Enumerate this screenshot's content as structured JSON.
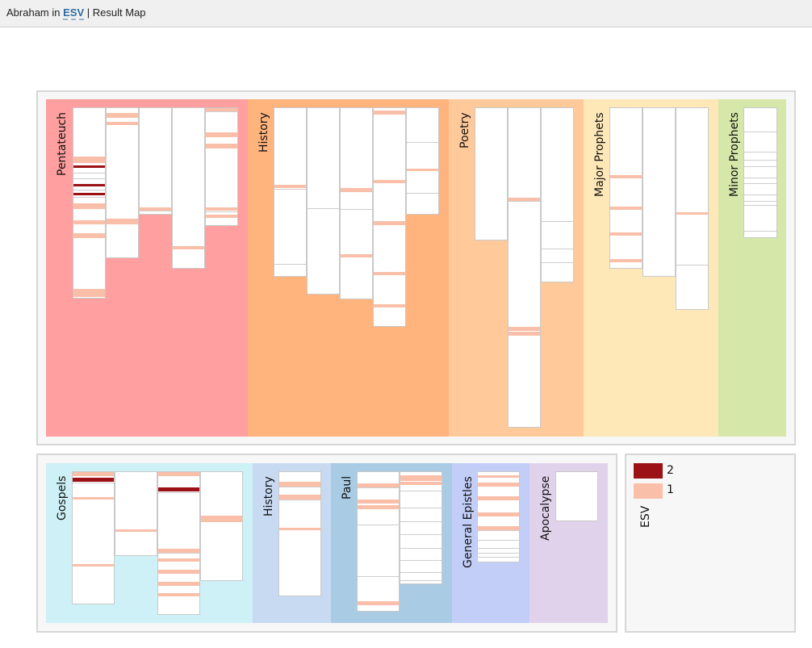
{
  "title": {
    "query": "Abraham",
    "sep1": "in",
    "version": "ESV",
    "sep2": "|",
    "view": "Result Map"
  },
  "colors": {
    "hit2": "#9b1116",
    "hit1": "#f9bfa9",
    "divider": "#cdcdcd"
  },
  "legend": {
    "items": [
      {
        "label": "2",
        "color": "#9b1116"
      },
      {
        "label": "1",
        "color": "#f9bfa9"
      }
    ],
    "version": "ESV"
  },
  "sections": {
    "ot": [
      {
        "id": "pentateuch",
        "label": "Pentateuch",
        "color": "#ff9f9f",
        "books": [
          {
            "h": 237,
            "hits": [
              [
                0.255,
                0.035,
                1
              ],
              [
                0.3,
                0.012,
                2
              ],
              [
                0.4,
                0.012,
                2
              ],
              [
                0.445,
                0.012,
                2
              ],
              [
                0.5,
                0.03,
                1
              ],
              [
                0.59,
                0.02,
                1
              ],
              [
                0.66,
                0.025,
                1
              ],
              [
                0.955,
                0.02,
                1
              ],
              [
                0.975,
                0.02,
                1
              ]
            ],
            "lines": [
              0.34,
              0.37,
              0.43,
              0.47
            ]
          },
          {
            "h": 187,
            "hits": [
              [
                0.03,
                0.03,
                1
              ],
              [
                0.09,
                0.02,
                1
              ],
              [
                0.74,
                0.04,
                1
              ]
            ],
            "lines": [
              0.76
            ]
          },
          {
            "h": 133,
            "hits": [
              [
                0.94,
                0.03,
                1
              ]
            ],
            "lines": [
              0.97
            ]
          },
          {
            "h": 200,
            "hits": [
              [
                0.865,
                0.02,
                1
              ]
            ],
            "lines": [
              0.87
            ]
          },
          {
            "h": 147,
            "hits": [
              [
                0.0,
                0.03,
                1
              ],
              [
                0.21,
                0.04,
                1
              ],
              [
                0.3,
                0.04,
                1
              ],
              [
                0.85,
                0.03,
                1
              ],
              [
                0.91,
                0.03,
                1
              ]
            ],
            "lines": [
              0.03,
              0.88
            ]
          }
        ]
      },
      {
        "id": "history-ot",
        "label": "History",
        "color": "#ffb37d",
        "books": [
          {
            "h": 210,
            "hits": [
              [
                0.455,
                0.02,
                1
              ]
            ],
            "lines": [
              0.48,
              0.93
            ]
          },
          {
            "h": 232,
            "hits": [],
            "lines": [
              0.54
            ]
          },
          {
            "h": 238,
            "hits": [
              [
                0.42,
                0.02,
                1
              ],
              [
                0.765,
                0.015,
                1
              ]
            ],
            "lines": [
              0.53
            ]
          },
          {
            "h": 272,
            "hits": [
              [
                0.01,
                0.02,
                1
              ],
              [
                0.33,
                0.015,
                1
              ],
              [
                0.52,
                0.02,
                1
              ],
              [
                0.75,
                0.015,
                1
              ],
              [
                0.9,
                0.015,
                1
              ]
            ],
            "lines": [
              0.34,
              0.53,
              0.76,
              0.91
            ]
          },
          {
            "h": 133,
            "hits": [
              [
                0.575,
                0.02,
                1
              ]
            ],
            "lines": [
              0.32,
              0.59,
              0.8
            ]
          }
        ]
      },
      {
        "id": "poetry",
        "label": "Poetry",
        "color": "#ffc99a",
        "books": [
          {
            "h": 165,
            "hits": [],
            "lines": []
          },
          {
            "h": 397,
            "hits": [
              [
                0.28,
                0.01,
                1
              ],
              [
                0.685,
                0.012,
                1
              ],
              [
                0.7,
                0.012,
                1
              ]
            ],
            "lines": [
              0.29,
              0.7
            ]
          },
          {
            "h": 217,
            "hits": [],
            "lines": [
              0.65,
              0.81,
              0.89
            ]
          }
        ]
      },
      {
        "id": "major-prophets",
        "label": "Major Prophets",
        "color": "#ffe8b7",
        "books": [
          {
            "h": 200,
            "hits": [
              [
                0.42,
                0.02,
                1
              ],
              [
                0.615,
                0.02,
                1
              ],
              [
                0.78,
                0.02,
                1
              ],
              [
                0.945,
                0.02,
                1
              ]
            ],
            "lines": [
              0.63,
              0.79,
              0.96
            ]
          },
          {
            "h": 210,
            "hits": [],
            "lines": []
          },
          {
            "h": 251,
            "hits": [
              [
                0.52,
                0.008,
                1
              ]
            ],
            "lines": [
              0.52,
              0.78
            ]
          }
        ]
      },
      {
        "id": "minor-prophets",
        "label": "Minor Prophets",
        "color": "#d5e8a9",
        "books": [
          {
            "h": 162,
            "hits": [],
            "lines": [
              0.18,
              0.34,
              0.4,
              0.45,
              0.54,
              0.58,
              0.67,
              0.72,
              0.75,
              0.95
            ]
          }
        ]
      }
    ],
    "nt": [
      {
        "id": "gospels",
        "label": "Gospels",
        "color": "#cdf1f6",
        "books": [
          {
            "h": 165,
            "hits": [
              [
                0.0,
                0.03,
                1
              ],
              [
                0.045,
                0.03,
                2
              ],
              [
                0.19,
                0.02,
                1
              ],
              [
                0.7,
                0.02,
                1
              ]
            ],
            "lines": [
              0.08
            ]
          },
          {
            "h": 105,
            "hits": [
              [
                0.69,
                0.03,
                1
              ]
            ],
            "lines": []
          },
          {
            "h": 178,
            "hits": [
              [
                0.0,
                0.03,
                1
              ],
              [
                0.11,
                0.03,
                2
              ],
              [
                0.54,
                0.03,
                1
              ],
              [
                0.61,
                0.02,
                1
              ],
              [
                0.69,
                0.03,
                1
              ],
              [
                0.77,
                0.03,
                1
              ],
              [
                0.85,
                0.02,
                1
              ]
            ],
            "lines": [
              0.14,
              0.57
            ]
          },
          {
            "h": 136,
            "hits": [
              [
                0.4,
                0.06,
                1
              ]
            ],
            "lines": []
          }
        ]
      },
      {
        "id": "history-nt",
        "label": "History",
        "color": "#c8daf2",
        "books": [
          {
            "h": 155,
            "hits": [
              [
                0.08,
                0.04,
                1
              ],
              [
                0.18,
                0.04,
                1
              ],
              [
                0.45,
                0.02,
                1
              ]
            ],
            "lines": [
              0.12,
              0.22
            ]
          }
        ]
      },
      {
        "id": "paul",
        "label": "Paul",
        "color": "#a9cbe4",
        "books": [
          {
            "h": 174,
            "hits": [
              [
                0.08,
                0.03,
                1
              ],
              [
                0.2,
                0.03,
                1
              ],
              [
                0.24,
                0.03,
                1
              ],
              [
                0.93,
                0.03,
                1
              ]
            ],
            "lines": [
              0.11,
              0.38,
              0.75
            ]
          },
          {
            "h": 140,
            "hits": [
              [
                0.03,
                0.05,
                1
              ],
              [
                0.09,
                0.03,
                1
              ]
            ],
            "lines": [
              0.17,
              0.32,
              0.44,
              0.56,
              0.68,
              0.79,
              0.9,
              0.97
            ]
          }
        ]
      },
      {
        "id": "general-epistles",
        "label": "General Epistles",
        "color": "#c3cef8",
        "books": [
          {
            "h": 113,
            "hits": [
              [
                0.04,
                0.03,
                1
              ],
              [
                0.12,
                0.04,
                1
              ],
              [
                0.27,
                0.04,
                1
              ],
              [
                0.45,
                0.04,
                1
              ],
              [
                0.6,
                0.04,
                1
              ]
            ],
            "lines": [
              0.65,
              0.76,
              0.85,
              0.9,
              0.95
            ]
          }
        ]
      },
      {
        "id": "apocalypse",
        "label": "Apocalypse",
        "color": "#e1d2ec",
        "books": [
          {
            "h": 62,
            "hits": [],
            "lines": []
          }
        ]
      }
    ]
  }
}
